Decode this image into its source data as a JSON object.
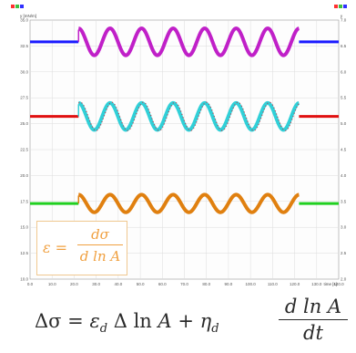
{
  "chart_data": {
    "type": "line",
    "left_axis_title": "y [mN/m]",
    "right_axis_title": "y",
    "x_axis_title": "time [s]",
    "x_ticks": [
      "0.0",
      "10.0",
      "20.0",
      "30.0",
      "40.0",
      "50.0",
      "60.0",
      "70.0",
      "80.0",
      "90.0",
      "100.0",
      "110.0",
      "120.0",
      "130.0",
      "140.0"
    ],
    "y_ticks_left": [
      "35.0",
      "32.5",
      "30.0",
      "27.5",
      "25.0",
      "22.5",
      "20.0",
      "17.5",
      "15.0",
      "12.5",
      "10.0"
    ],
    "y_ticks_right": [
      "7.0",
      "6.5",
      "6.0",
      "5.5",
      "5.0",
      "4.5",
      "4.0",
      "3.5",
      "3.0",
      "2.5",
      "2.0"
    ],
    "xlim": [
      0,
      140
    ],
    "series": [
      {
        "color": "#c020c8",
        "baseline_color": "#1a1aff",
        "center": 32.9,
        "amplitude": 1.3,
        "start": 22,
        "end": 122,
        "period": 14.3
      },
      {
        "color": "#30d0d8",
        "baseline_color": "#e01010",
        "center": 25.7,
        "amplitude": 1.3,
        "start": 22,
        "end": 122,
        "period": 14.3
      },
      {
        "color": "#e08010",
        "baseline_color": "#20d020",
        "center": 17.3,
        "amplitude": 0.85,
        "start": 22,
        "end": 122,
        "period": 14.3
      }
    ],
    "grid": true
  },
  "inset": {
    "lhs": "ε =",
    "num": "dσ",
    "den": "d ln A"
  },
  "formula": {
    "lhs": "Δσ = ",
    "eps": "ε",
    "eps_sub": "d",
    "mid": " Δ ln ",
    "A": "A",
    "plus": " + ",
    "eta": "η",
    "eta_sub": "d",
    "num": "d ln A",
    "den": "dt"
  }
}
